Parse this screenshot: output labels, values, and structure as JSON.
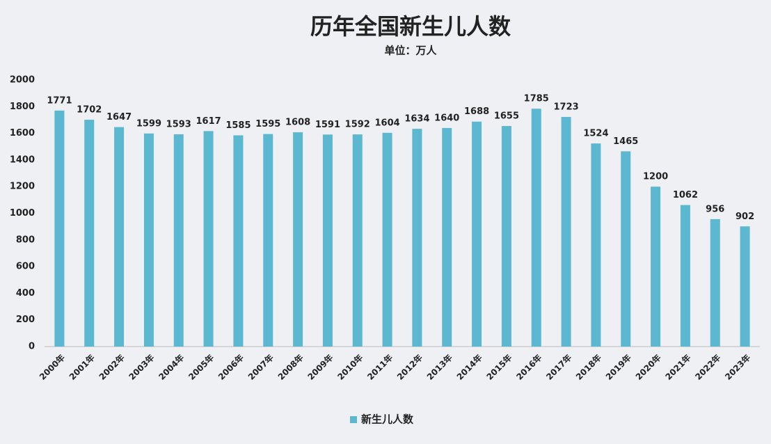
{
  "chart_data": {
    "type": "bar",
    "title": "历年全国新生儿人数",
    "subtitle": "单位：万人",
    "categories": [
      "2000年",
      "2001年",
      "2002年",
      "2003年",
      "2004年",
      "2005年",
      "2006年",
      "2007年",
      "2008年",
      "2009年",
      "2010年",
      "2011年",
      "2012年",
      "2013年",
      "2014年",
      "2015年",
      "2016年",
      "2017年",
      "2018年",
      "2019年",
      "2020年",
      "2021年",
      "2022年",
      "2023年"
    ],
    "series": [
      {
        "name": "新生儿人数",
        "color": "#5bb8d0",
        "values": [
          1771,
          1702,
          1647,
          1599,
          1593,
          1617,
          1585,
          1595,
          1608,
          1591,
          1592,
          1604,
          1634,
          1640,
          1688,
          1655,
          1785,
          1723,
          1524,
          1465,
          1200,
          1062,
          956,
          902
        ]
      }
    ],
    "ylim": [
      0,
      2000
    ],
    "yticks": [
      0,
      200,
      400,
      600,
      800,
      1000,
      1200,
      1400,
      1600,
      1800,
      2000
    ],
    "grid": false,
    "legend": "bottom"
  }
}
